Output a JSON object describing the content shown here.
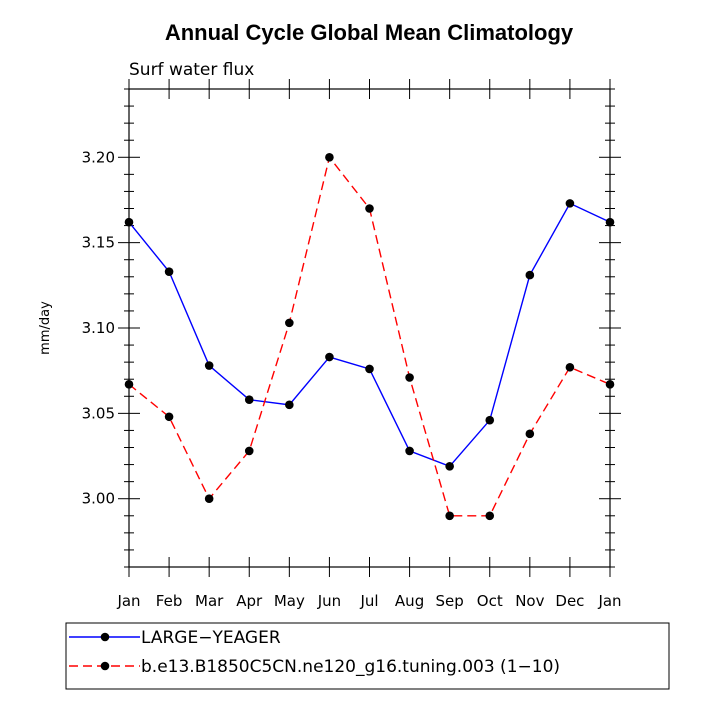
{
  "chart_data": {
    "type": "line",
    "title": "Annual Cycle Global Mean Climatology",
    "subtitle": "Surf water flux",
    "xlabel": "",
    "ylabel": "mm/day",
    "categories": [
      "Jan",
      "Feb",
      "Mar",
      "Apr",
      "May",
      "Jun",
      "Jul",
      "Aug",
      "Sep",
      "Oct",
      "Nov",
      "Dec",
      "Jan"
    ],
    "yticks": [
      "3.00",
      "3.05",
      "3.10",
      "3.15",
      "3.20"
    ],
    "ylim": [
      2.96,
      3.24
    ],
    "grid": false,
    "legend_position": "bottom",
    "series": [
      {
        "name": "LARGE−YEAGER",
        "color": "#0000ff",
        "dash": "solid",
        "values": [
          3.162,
          3.133,
          3.078,
          3.058,
          3.055,
          3.083,
          3.076,
          3.028,
          3.019,
          3.046,
          3.131,
          3.173,
          3.162
        ]
      },
      {
        "name": "b.e13.B1850C5CN.ne120_g16.tuning.003 (1−10)",
        "color": "#ff0000",
        "dash": "dashed",
        "values": [
          3.067,
          3.048,
          3.0,
          3.028,
          3.103,
          3.2,
          3.17,
          3.071,
          2.99,
          2.99,
          3.038,
          3.077,
          3.067
        ]
      }
    ]
  }
}
